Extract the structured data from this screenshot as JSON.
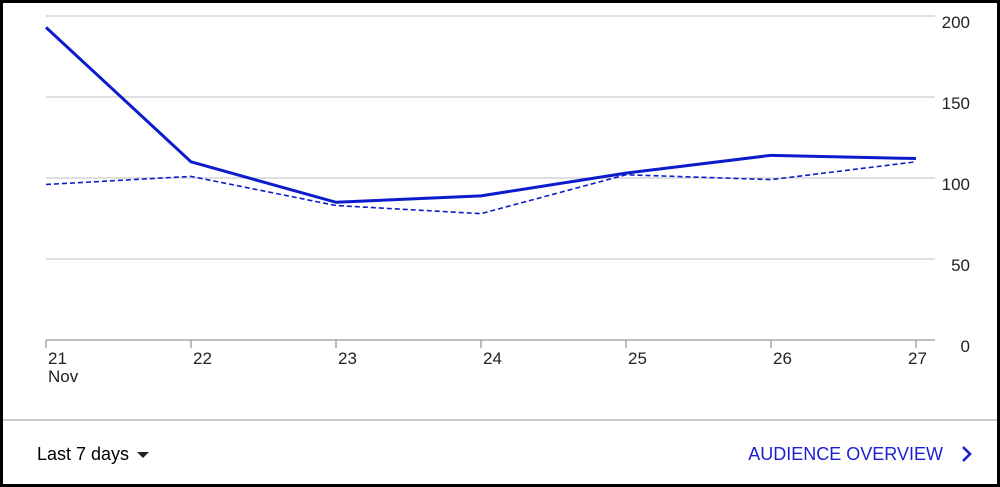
{
  "chart_data": {
    "type": "line",
    "categories": [
      "21",
      "22",
      "23",
      "24",
      "25",
      "26",
      "27"
    ],
    "x_sublabel": "Nov",
    "series": [
      {
        "color": "#0b1ccc",
        "line_style": "solid",
        "values": [
          193,
          110,
          85,
          89,
          103,
          114,
          112
        ]
      },
      {
        "color": "#0b1ccc",
        "line_style": "dashed",
        "values": [
          96,
          101,
          83,
          78,
          102,
          99,
          110
        ]
      }
    ],
    "ylim": [
      0,
      200
    ],
    "yticks": [
      0,
      50,
      100,
      150,
      200
    ],
    "grid": true,
    "y_axis_side": "right"
  },
  "footer": {
    "range_label": "Last 7 days",
    "link_label": "AUDIENCE OVERVIEW"
  }
}
